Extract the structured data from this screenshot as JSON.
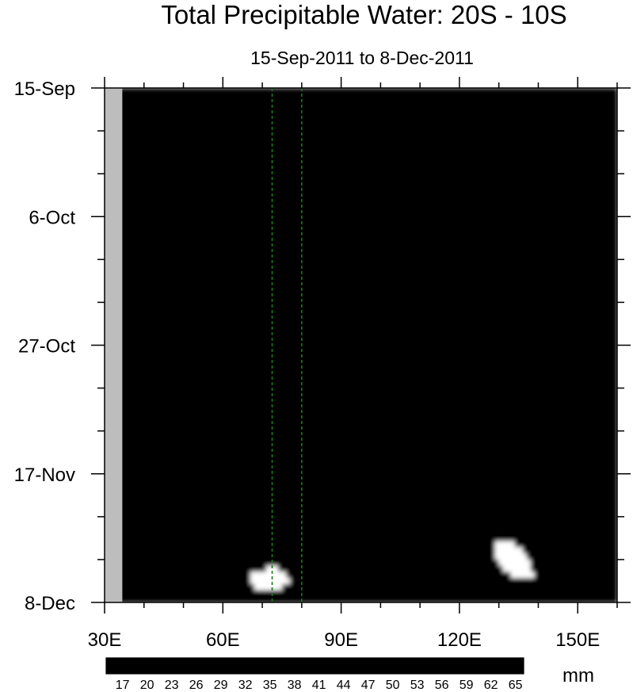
{
  "chart_data": {
    "type": "heatmap",
    "title": "Total Precipitable Water: 20S - 10S",
    "subtitle": "15-Sep-2011 to 8-Dec-2011",
    "x_ticks": [
      {
        "value": 30,
        "label": "30E"
      },
      {
        "value": 60,
        "label": "60E"
      },
      {
        "value": 90,
        "label": "90E"
      },
      {
        "value": 120,
        "label": "120E"
      },
      {
        "value": 150,
        "label": "150E"
      }
    ],
    "xlim": [
      30,
      160
    ],
    "y_ticks": [
      {
        "day": 0,
        "label": "15-Sep"
      },
      {
        "day": 21,
        "label": "6-Oct"
      },
      {
        "day": 42,
        "label": "27-Oct"
      },
      {
        "day": 63,
        "label": "17-Nov"
      },
      {
        "day": 84,
        "label": "8-Dec"
      }
    ],
    "ylim_days": [
      0,
      84
    ],
    "reference_lines_x": [
      72.5,
      80
    ],
    "colorbar": {
      "unit": "mm",
      "min": 15,
      "max": 66,
      "step": 1,
      "tick_labels": [
        "17",
        "20",
        "23",
        "26",
        "29",
        "32",
        "35",
        "38",
        "41",
        "44",
        "47",
        "50",
        "53",
        "56",
        "59",
        "62",
        "65"
      ]
    },
    "colors": {
      "land_mask": "#bdbdbd",
      "reference_line": "#1a7a1a"
    }
  }
}
